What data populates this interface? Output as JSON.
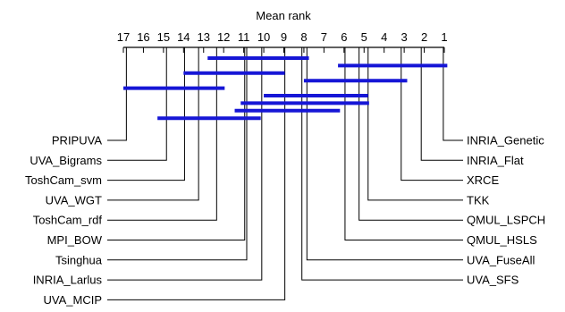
{
  "chart_data": {
    "type": "critical-difference-diagram",
    "title": "Mean rank",
    "axis": {
      "ticks": [
        17,
        16,
        15,
        14,
        13,
        12,
        11,
        10,
        9,
        8,
        7,
        6,
        5,
        4,
        3,
        2,
        1
      ],
      "range": [
        17,
        1
      ],
      "direction": "descending-left-to-right"
    },
    "methods_left": [
      {
        "name": "PRIPUVA",
        "rank": 16.85
      },
      {
        "name": "UVA_Bigrams",
        "rank": 14.85
      },
      {
        "name": "ToshCam_svm",
        "rank": 13.95
      },
      {
        "name": "UVA_WGT",
        "rank": 13.25
      },
      {
        "name": "ToshCam_rdf",
        "rank": 12.35
      },
      {
        "name": "MPI_BOW",
        "rank": 10.95
      },
      {
        "name": "Tsinghua",
        "rank": 10.85
      },
      {
        "name": "INRIA_Larlus",
        "rank": 10.1
      },
      {
        "name": "UVA_MCIP",
        "rank": 8.95
      }
    ],
    "methods_right": [
      {
        "name": "INRIA_Genetic",
        "rank": 1.05
      },
      {
        "name": "INRIA_Flat",
        "rank": 2.15
      },
      {
        "name": "XRCE",
        "rank": 3.15
      },
      {
        "name": "TKK",
        "rank": 4.8
      },
      {
        "name": "QMUL_LSPCH",
        "rank": 5.25
      },
      {
        "name": "QMUL_HSLS",
        "rank": 5.95
      },
      {
        "name": "UVA_FuseAll",
        "rank": 7.85
      },
      {
        "name": "UVA_SFS",
        "rank": 8.1
      }
    ],
    "cliques": [
      {
        "from": 12.8,
        "to": 7.75
      },
      {
        "from": 6.3,
        "to": 0.85
      },
      {
        "from": 14.0,
        "to": 8.95
      },
      {
        "from": 8.0,
        "to": 2.85
      },
      {
        "from": 17.0,
        "to": 11.95
      },
      {
        "from": 10.0,
        "to": 4.8
      },
      {
        "from": 11.15,
        "to": 4.75
      },
      {
        "from": 11.45,
        "to": 6.2
      },
      {
        "from": 15.3,
        "to": 10.15
      }
    ],
    "colors": {
      "line": "#000000",
      "clique": "#1616d6",
      "background": "#ffffff"
    }
  }
}
